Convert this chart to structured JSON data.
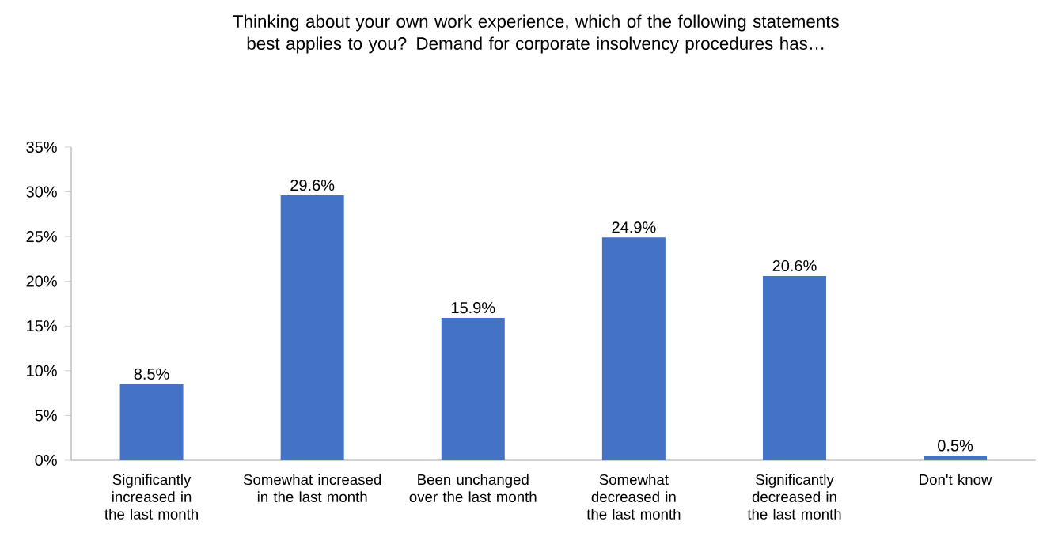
{
  "chart_data": {
    "type": "bar",
    "title": "Thinking about your own work experience, which of the following statements best applies to you? Demand for corporate insolvency procedures has…",
    "categories": [
      "Significantly increased in the last month",
      "Somewhat increased in the last month",
      "Been unchanged over the last month",
      "Somewhat decreased in the last month",
      "Significantly decreased in the last month",
      "Don't know"
    ],
    "values": [
      8.5,
      29.6,
      15.9,
      24.9,
      20.6,
      0.5
    ],
    "value_labels": [
      "8.5%",
      "29.6%",
      "15.9%",
      "24.9%",
      "20.6%",
      "0.5%"
    ],
    "color": "#4472c4",
    "ylim": [
      0,
      35
    ],
    "yticks": [
      {
        "value": 0,
        "label": "0%"
      },
      {
        "value": 5,
        "label": "5%"
      },
      {
        "value": 10,
        "label": "10%"
      },
      {
        "value": 15,
        "label": "15%"
      },
      {
        "value": 20,
        "label": "20%"
      },
      {
        "value": 25,
        "label": "25%"
      },
      {
        "value": 30,
        "label": "30%"
      },
      {
        "value": 35,
        "label": "35%"
      }
    ],
    "grid": false
  }
}
